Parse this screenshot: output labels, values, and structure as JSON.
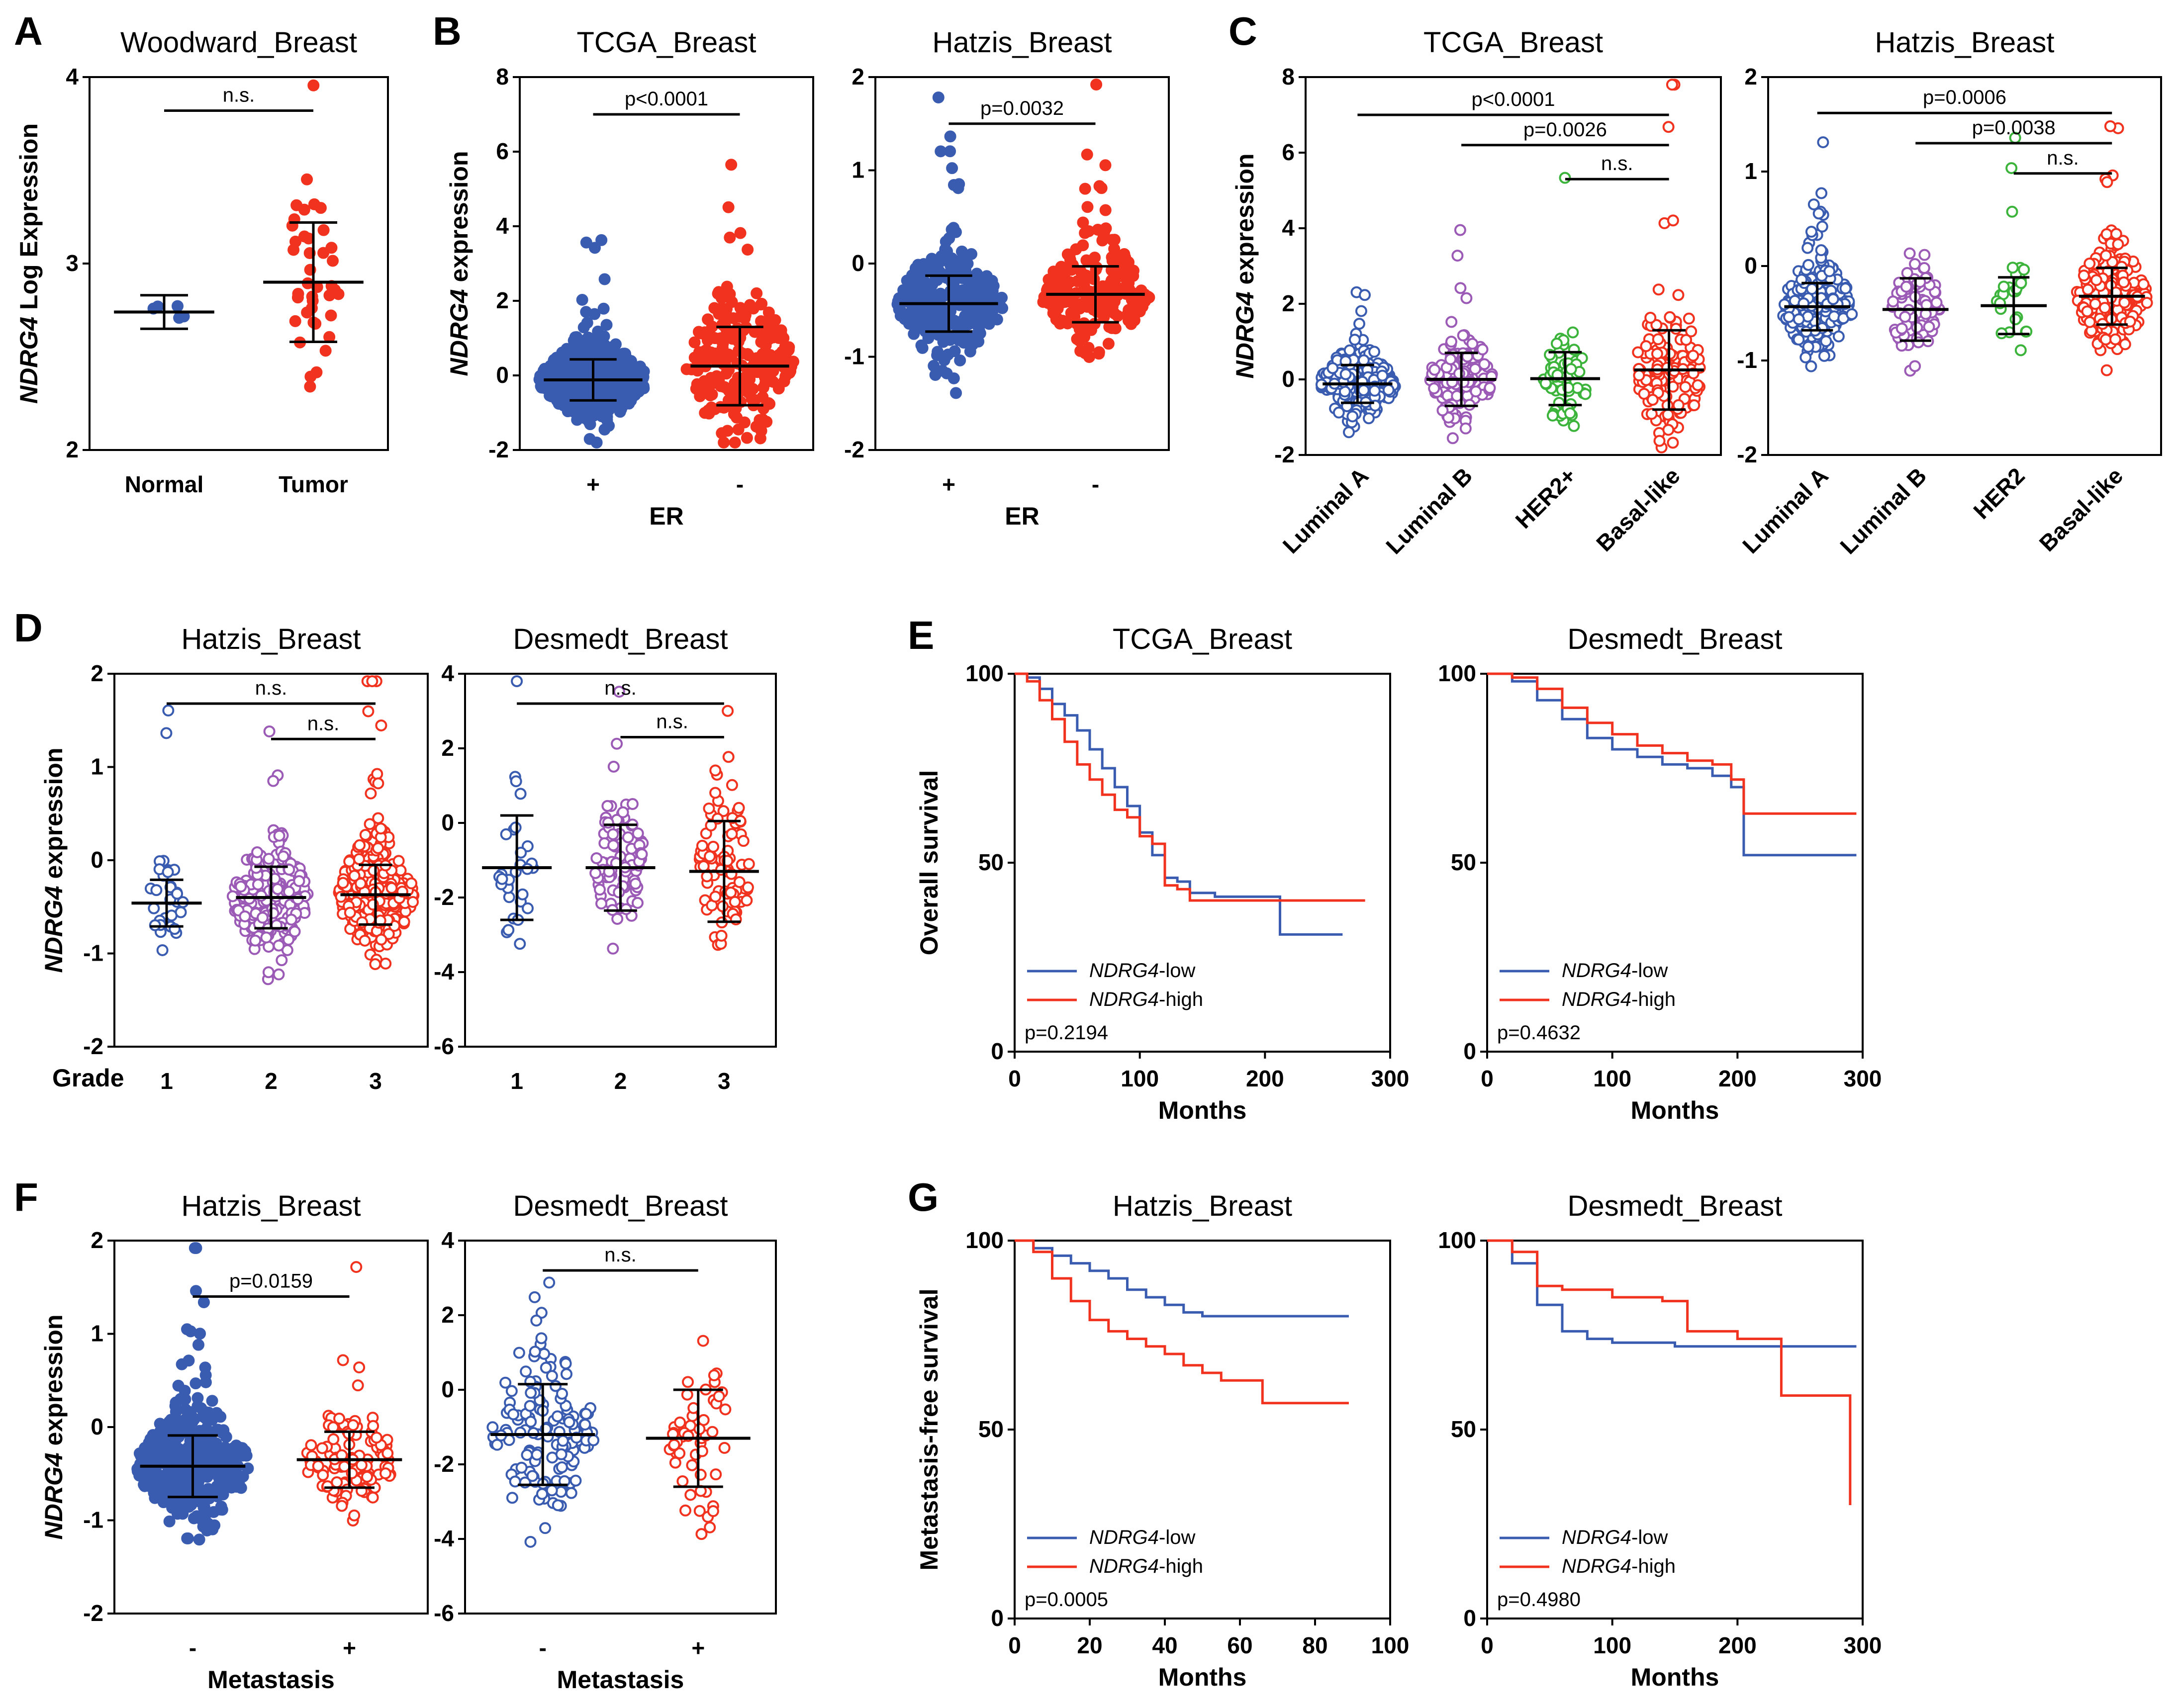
{
  "figure": {
    "palette": {
      "blue": "#3a5cb0",
      "red": "#f0321e",
      "purple": "#9b5ab6",
      "green": "#3cb43c",
      "black": "#000000"
    }
  },
  "chart_data": [
    {
      "id": "A",
      "letter": "A",
      "type": "scatter",
      "title": "Woodward_Breast",
      "ylabel_italic": "NDRG4",
      "ylabel_rest": " Log Expression",
      "ylim": [
        2,
        4
      ],
      "yticks": [
        2,
        3,
        4
      ],
      "categories": [
        "Normal",
        "Tumor"
      ],
      "xlabel": "",
      "groups": [
        {
          "name": "Normal",
          "color": "blue",
          "mean": 2.74,
          "sd": 0.09,
          "n": 5,
          "filled": true
        },
        {
          "name": "Tumor",
          "color": "red",
          "mean": 2.9,
          "sd": 0.32,
          "n": 40,
          "filled": true
        }
      ],
      "annotations": [
        {
          "text": "n.s.",
          "from": 0,
          "to": 1,
          "y": 3.82
        }
      ]
    },
    {
      "id": "B1",
      "letter": "B",
      "type": "scatter",
      "title": "TCGA_Breast",
      "ylabel_italic": "NDRG4",
      "ylabel_rest": " expression",
      "ylim": [
        -2,
        8
      ],
      "yticks": [
        -2,
        0,
        2,
        4,
        6,
        8
      ],
      "categories": [
        "+",
        "-"
      ],
      "xlabel": "ER",
      "groups": [
        {
          "name": "+",
          "color": "blue",
          "mean": -0.12,
          "sd": 0.55,
          "n": 600,
          "filled": true
        },
        {
          "name": "-",
          "color": "red",
          "mean": 0.25,
          "sd": 1.05,
          "n": 220,
          "filled": true
        }
      ],
      "annotations": [
        {
          "text": "p<0.0001",
          "from": 0,
          "to": 1,
          "y": 7.0
        }
      ]
    },
    {
      "id": "B2",
      "letter": "",
      "type": "scatter",
      "title": "Hatzis_Breast",
      "ylabel_italic": "",
      "ylabel_rest": "",
      "ylim": [
        -2,
        2
      ],
      "yticks": [
        -2,
        -1,
        0,
        1,
        2
      ],
      "categories": [
        "+",
        "-"
      ],
      "xlabel": "ER",
      "groups": [
        {
          "name": "+",
          "color": "blue",
          "mean": -0.43,
          "sd": 0.3,
          "n": 300,
          "filled": true
        },
        {
          "name": "-",
          "color": "red",
          "mean": -0.33,
          "sd": 0.3,
          "n": 200,
          "filled": true
        }
      ],
      "annotations": [
        {
          "text": "p=0.0032",
          "from": 0,
          "to": 1,
          "y": 1.5
        }
      ]
    },
    {
      "id": "C1",
      "letter": "C",
      "type": "scatter",
      "title": "TCGA_Breast",
      "ylabel_italic": "NDRG4",
      "ylabel_rest": " expression",
      "ylim": [
        -2,
        8
      ],
      "yticks": [
        -2,
        0,
        2,
        4,
        6,
        8
      ],
      "categories": [
        "Luminal A",
        "Luminal B",
        "HER2+",
        "Basal-like"
      ],
      "xlabel": "",
      "xrot": true,
      "groups": [
        {
          "name": "Luminal A",
          "color": "blue",
          "mean": -0.12,
          "sd": 0.5,
          "n": 230,
          "filled": false
        },
        {
          "name": "Luminal B",
          "color": "purple",
          "mean": 0.0,
          "sd": 0.7,
          "n": 120,
          "filled": false
        },
        {
          "name": "HER2+",
          "color": "green",
          "mean": 0.02,
          "sd": 0.7,
          "n": 60,
          "filled": false
        },
        {
          "name": "Basal-like",
          "color": "red",
          "mean": 0.25,
          "sd": 1.05,
          "n": 130,
          "filled": false
        }
      ],
      "annotations": [
        {
          "text": "p<0.0001",
          "from": 0,
          "to": 3,
          "y": 7.0
        },
        {
          "text": "p=0.0026",
          "from": 1,
          "to": 3,
          "y": 6.2
        },
        {
          "text": "n.s.",
          "from": 2,
          "to": 3,
          "y": 5.3
        }
      ]
    },
    {
      "id": "C2",
      "letter": "",
      "type": "scatter",
      "title": "Hatzis_Breast",
      "ylabel_italic": "",
      "ylabel_rest": "",
      "ylim": [
        -2,
        2
      ],
      "yticks": [
        -2,
        -1,
        0,
        1,
        2
      ],
      "categories": [
        "Luminal A",
        "Luminal B",
        "HER2",
        "Basal-like"
      ],
      "xlabel": "",
      "xrot": true,
      "groups": [
        {
          "name": "Luminal A",
          "color": "blue",
          "mean": -0.43,
          "sd": 0.25,
          "n": 220,
          "filled": false
        },
        {
          "name": "Luminal B",
          "color": "purple",
          "mean": -0.46,
          "sd": 0.33,
          "n": 80,
          "filled": false
        },
        {
          "name": "HER2",
          "color": "green",
          "mean": -0.42,
          "sd": 0.3,
          "n": 30,
          "filled": false
        },
        {
          "name": "Basal-like",
          "color": "red",
          "mean": -0.32,
          "sd": 0.3,
          "n": 220,
          "filled": false
        }
      ],
      "annotations": [
        {
          "text": "p=0.0006",
          "from": 0,
          "to": 3,
          "y": 1.62
        },
        {
          "text": "p=0.0038",
          "from": 1,
          "to": 3,
          "y": 1.3
        },
        {
          "text": "n.s.",
          "from": 2,
          "to": 3,
          "y": 0.98
        }
      ]
    },
    {
      "id": "D1",
      "letter": "D",
      "type": "scatter",
      "title": "Hatzis_Breast",
      "ylabel_italic": "NDRG4",
      "ylabel_rest": " expression",
      "ylim": [
        -2,
        2
      ],
      "yticks": [
        -2,
        -1,
        0,
        1,
        2
      ],
      "categories": [
        "1",
        "2",
        "3"
      ],
      "xlabel": "",
      "rowlabel": "Grade",
      "groups": [
        {
          "name": "1",
          "color": "blue",
          "mean": -0.46,
          "sd": 0.25,
          "n": 30,
          "filled": false
        },
        {
          "name": "2",
          "color": "purple",
          "mean": -0.4,
          "sd": 0.33,
          "n": 200,
          "filled": false
        },
        {
          "name": "3",
          "color": "red",
          "mean": -0.37,
          "sd": 0.32,
          "n": 300,
          "filled": false
        }
      ],
      "annotations": [
        {
          "text": "n.s.",
          "from": 0,
          "to": 2,
          "y": 1.68
        },
        {
          "text": "n.s.",
          "from": 1,
          "to": 2,
          "y": 1.3
        }
      ]
    },
    {
      "id": "D2",
      "letter": "",
      "type": "scatter",
      "title": "Desmedt_Breast",
      "ylabel_italic": "",
      "ylabel_rest": "",
      "ylim": [
        -6,
        4
      ],
      "yticks": [
        -6,
        -4,
        -2,
        0,
        2,
        4
      ],
      "categories": [
        "1",
        "2",
        "3"
      ],
      "xlabel": "",
      "groups": [
        {
          "name": "1",
          "color": "blue",
          "mean": -1.2,
          "sd": 1.4,
          "n": 30,
          "filled": false
        },
        {
          "name": "2",
          "color": "purple",
          "mean": -1.2,
          "sd": 1.15,
          "n": 80,
          "filled": false
        },
        {
          "name": "3",
          "color": "red",
          "mean": -1.3,
          "sd": 1.35,
          "n": 80,
          "filled": false
        }
      ],
      "annotations": [
        {
          "text": "n.s.",
          "from": 0,
          "to": 2,
          "y": 3.2
        },
        {
          "text": "n.s.",
          "from": 1,
          "to": 2,
          "y": 2.3
        }
      ]
    },
    {
      "id": "E1",
      "letter": "E",
      "type": "line",
      "title": "TCGA_Breast",
      "ylabel": "Overall survival",
      "xlabel": "Months",
      "xlim": [
        0,
        300
      ],
      "ylim": [
        0,
        100
      ],
      "xticks": [
        0,
        100,
        200,
        300
      ],
      "yticks": [
        0,
        50,
        100
      ],
      "pvalue": "p=0.2194",
      "series": [
        {
          "name_italic": "NDRG4",
          "name_rest": "-low",
          "color": "blue",
          "x": [
            0,
            10,
            20,
            30,
            40,
            50,
            60,
            70,
            80,
            90,
            100,
            110,
            120,
            130,
            140,
            160,
            180,
            200,
            212,
            262
          ],
          "y": [
            100,
            99,
            96,
            92,
            89,
            85,
            80,
            75,
            70,
            65,
            58,
            52,
            46,
            45,
            42,
            41,
            41,
            41,
            31,
            31
          ]
        },
        {
          "name_italic": "NDRG4",
          "name_rest": "-high",
          "color": "red",
          "x": [
            0,
            10,
            20,
            30,
            40,
            50,
            60,
            70,
            80,
            90,
            100,
            110,
            120,
            130,
            140,
            160,
            200,
            230,
            280
          ],
          "y": [
            100,
            98,
            93,
            88,
            82,
            76,
            72,
            68,
            64,
            62,
            57,
            55,
            44,
            43,
            40,
            40,
            40,
            40,
            40
          ]
        }
      ]
    },
    {
      "id": "E2",
      "letter": "",
      "type": "line",
      "title": "Desmedt_Breast",
      "ylabel": "",
      "xlabel": "Months",
      "xlim": [
        0,
        300
      ],
      "ylim": [
        0,
        100
      ],
      "xticks": [
        0,
        100,
        200,
        300
      ],
      "yticks": [
        0,
        50,
        100
      ],
      "pvalue": "p=0.4632",
      "series": [
        {
          "name_italic": "NDRG4",
          "name_rest": "-low",
          "color": "blue",
          "x": [
            0,
            20,
            40,
            60,
            80,
            100,
            120,
            140,
            160,
            180,
            195,
            205,
            295
          ],
          "y": [
            100,
            98,
            93,
            88,
            83,
            80,
            78,
            76,
            75,
            73,
            70,
            52,
            52
          ]
        },
        {
          "name_italic": "NDRG4",
          "name_rest": "-high",
          "color": "red",
          "x": [
            0,
            20,
            40,
            60,
            80,
            100,
            120,
            140,
            160,
            180,
            195,
            205,
            295
          ],
          "y": [
            100,
            99,
            96,
            91,
            87,
            84,
            81,
            79,
            77,
            76,
            72,
            63,
            63
          ]
        }
      ]
    },
    {
      "id": "F1",
      "letter": "F",
      "type": "scatter",
      "title": "Hatzis_Breast",
      "ylabel_italic": "NDRG4",
      "ylabel_rest": " expression",
      "ylim": [
        -2,
        2
      ],
      "yticks": [
        -2,
        -1,
        0,
        1,
        2
      ],
      "categories": [
        "-",
        "+"
      ],
      "xlabel": "Metastasis",
      "groups": [
        {
          "name": "-",
          "color": "blue",
          "mean": -0.42,
          "sd": 0.33,
          "n": 380,
          "filled": true
        },
        {
          "name": "+",
          "color": "red",
          "mean": -0.35,
          "sd": 0.3,
          "n": 110,
          "filled": false
        }
      ],
      "annotations": [
        {
          "text": "p=0.0159",
          "from": 0,
          "to": 1,
          "y": 1.4
        }
      ]
    },
    {
      "id": "F2",
      "letter": "",
      "type": "scatter",
      "title": "Desmedt_Breast",
      "ylabel_italic": "",
      "ylabel_rest": "",
      "ylim": [
        -6,
        4
      ],
      "yticks": [
        -6,
        -4,
        -2,
        0,
        2,
        4
      ],
      "categories": [
        "-",
        "+"
      ],
      "xlabel": "Metastasis",
      "groups": [
        {
          "name": "-",
          "color": "blue",
          "mean": -1.2,
          "sd": 1.35,
          "n": 140,
          "filled": false
        },
        {
          "name": "+",
          "color": "red",
          "mean": -1.3,
          "sd": 1.3,
          "n": 55,
          "filled": false
        }
      ],
      "annotations": [
        {
          "text": "n.s.",
          "from": 0,
          "to": 1,
          "y": 3.2
        }
      ]
    },
    {
      "id": "G1",
      "letter": "G",
      "type": "line",
      "title": "Hatzis_Breast",
      "ylabel": "Metastasis-free survival",
      "xlabel": "Months",
      "xlim": [
        0,
        100
      ],
      "ylim": [
        0,
        100
      ],
      "xticks": [
        0,
        20,
        40,
        60,
        80,
        100
      ],
      "yticks": [
        0,
        50,
        100
      ],
      "pvalue": "p=0.0005",
      "series": [
        {
          "name_italic": "NDRG4",
          "name_rest": "-low",
          "color": "blue",
          "x": [
            0,
            5,
            10,
            15,
            20,
            25,
            30,
            35,
            40,
            45,
            50,
            60,
            70,
            80,
            89
          ],
          "y": [
            100,
            98,
            96,
            94,
            92,
            90,
            87,
            85,
            83,
            81,
            80,
            80,
            80,
            80,
            80
          ]
        },
        {
          "name_italic": "NDRG4",
          "name_rest": "-high",
          "color": "red",
          "x": [
            0,
            5,
            10,
            15,
            20,
            25,
            30,
            35,
            40,
            45,
            50,
            55,
            60,
            65,
            66,
            89
          ],
          "y": [
            100,
            97,
            90,
            84,
            79,
            76,
            74,
            72,
            70,
            67,
            65,
            63,
            63,
            63,
            57,
            57
          ]
        }
      ]
    },
    {
      "id": "G2",
      "letter": "",
      "type": "line",
      "title": "Desmedt_Breast",
      "ylabel": "",
      "xlabel": "Months",
      "xlim": [
        0,
        300
      ],
      "ylim": [
        0,
        100
      ],
      "xticks": [
        0,
        100,
        200,
        300
      ],
      "yticks": [
        0,
        50,
        100
      ],
      "pvalue": "p=0.4980",
      "series": [
        {
          "name_italic": "NDRG4",
          "name_rest": "-low",
          "color": "blue",
          "x": [
            0,
            20,
            40,
            60,
            80,
            100,
            150,
            200,
            295
          ],
          "y": [
            100,
            94,
            83,
            76,
            74,
            73,
            72,
            72,
            72
          ]
        },
        {
          "name_italic": "NDRG4",
          "name_rest": "-high",
          "color": "red",
          "x": [
            0,
            20,
            40,
            60,
            100,
            140,
            160,
            200,
            225,
            235,
            290
          ],
          "y": [
            100,
            97,
            88,
            87,
            85,
            84,
            76,
            74,
            74,
            59,
            30
          ]
        }
      ]
    }
  ]
}
